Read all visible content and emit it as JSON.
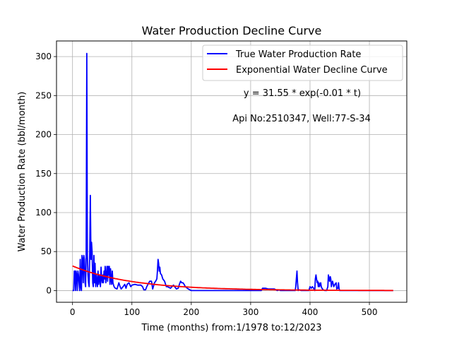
{
  "chart_data": {
    "type": "line",
    "title": "Water Production Decline Curve",
    "xlabel": "Time (months) from:1/1978 to:12/2023",
    "ylabel": "Water Production Rate (bbl/month)",
    "xlim": [
      -27,
      563
    ],
    "ylim": [
      -15,
      320
    ],
    "xticks": [
      0,
      100,
      200,
      300,
      400,
      500
    ],
    "yticks": [
      0,
      50,
      100,
      150,
      200,
      250,
      300
    ],
    "grid": true,
    "legend_placement": "top-right",
    "annotations": [
      "y = 31.55 * exp(-0.01 * t)",
      "Api No:2510347, Well:77-S-34"
    ],
    "series": [
      {
        "name": "True Water Production Rate",
        "color": "#0000ff",
        "x": [
          0,
          2,
          3,
          4,
          5,
          6,
          7,
          8,
          9,
          10,
          11,
          12,
          13,
          14,
          15,
          16,
          17,
          18,
          19,
          20,
          21,
          22,
          23,
          24,
          25,
          26,
          27,
          28,
          29,
          30,
          31,
          32,
          33,
          34,
          35,
          36,
          37,
          38,
          39,
          40,
          41,
          42,
          43,
          44,
          45,
          46,
          47,
          48,
          49,
          50,
          51,
          52,
          53,
          54,
          55,
          56,
          57,
          58,
          59,
          60,
          61,
          62,
          63,
          64,
          65,
          66,
          67,
          68,
          70,
          72,
          75,
          78,
          80,
          82,
          85,
          88,
          90,
          92,
          95,
          98,
          100,
          105,
          110,
          115,
          118,
          120,
          123,
          125,
          127,
          130,
          133,
          135,
          138,
          140,
          142,
          143,
          144,
          145,
          146,
          147,
          148,
          150,
          152,
          155,
          158,
          160,
          165,
          170,
          175,
          178,
          180,
          182,
          184,
          186,
          188,
          190,
          195,
          200,
          250,
          300,
          318,
          320,
          322,
          325,
          330,
          335,
          340,
          345,
          348,
          350,
          355,
          360,
          370,
          375,
          376,
          377,
          378,
          379,
          380,
          382,
          385,
          390,
          395,
          398,
          400,
          402,
          404,
          406,
          408,
          409,
          410,
          411,
          412,
          413,
          414,
          415,
          416,
          417,
          418,
          419,
          420,
          422,
          425,
          428,
          430,
          431,
          432,
          433,
          434,
          435,
          436,
          437,
          438,
          440,
          442,
          444,
          445,
          446,
          447,
          448,
          449,
          450,
          452,
          455,
          460,
          470,
          480,
          500,
          520,
          540
        ],
        "values": [
          0,
          0,
          25,
          25,
          0,
          25,
          20,
          0,
          25,
          20,
          10,
          0,
          40,
          5,
          0,
          45,
          40,
          10,
          45,
          40,
          10,
          5,
          45,
          304,
          45,
          20,
          10,
          5,
          50,
          122,
          40,
          62,
          50,
          10,
          5,
          45,
          10,
          35,
          5,
          20,
          12,
          5,
          25,
          8,
          20,
          15,
          5,
          30,
          15,
          10,
          20,
          10,
          25,
          15,
          31,
          10,
          20,
          31,
          12,
          31,
          20,
          31,
          8,
          28,
          15,
          8,
          25,
          10,
          5,
          3,
          2,
          10,
          5,
          2,
          5,
          8,
          3,
          8,
          10,
          5,
          7,
          8,
          7,
          7,
          5,
          1,
          1,
          5,
          8,
          12,
          12,
          2,
          10,
          12,
          15,
          25,
          40,
          35,
          25,
          30,
          22,
          20,
          15,
          12,
          5,
          5,
          3,
          7,
          2,
          3,
          8,
          12,
          10,
          10,
          8,
          5,
          2,
          0,
          0,
          0,
          0,
          3,
          3,
          3,
          2,
          2,
          2,
          0,
          1,
          0,
          0,
          0,
          0,
          0,
          5,
          15,
          25,
          10,
          0,
          1,
          0,
          0,
          0,
          0,
          5,
          3,
          5,
          3,
          0,
          15,
          20,
          15,
          10,
          12,
          5,
          10,
          5,
          8,
          10,
          5,
          3,
          1,
          0,
          0,
          5,
          20,
          15,
          12,
          18,
          15,
          5,
          10,
          12,
          5,
          8,
          10,
          2,
          3,
          3,
          10,
          2,
          0,
          0,
          0,
          0,
          0,
          0,
          0,
          0,
          0
        ]
      },
      {
        "name": "Exponential Water Decline Curve",
        "color": "#ff0000",
        "function": "y = 31.55 * exp(-0.01 * t)",
        "a": 31.55,
        "b": 0.01,
        "x_range": [
          0,
          540
        ]
      }
    ]
  }
}
